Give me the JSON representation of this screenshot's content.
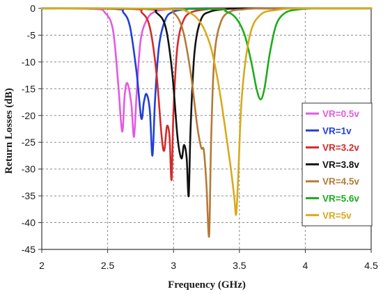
{
  "chart_data": {
    "type": "line",
    "xlabel": "Frequency (GHz)",
    "ylabel": "Return Losses (dB)",
    "xlim": [
      2,
      4.5
    ],
    "ylim": [
      -45,
      0
    ],
    "xticks": [
      "2",
      "2.5",
      "3",
      "3.5",
      "4",
      "4.5"
    ],
    "yticks": [
      "0",
      "-5",
      "-10",
      "-15",
      "-20",
      "-25",
      "-30",
      "-35",
      "-40",
      "-45"
    ],
    "grid": true,
    "legend_position": "right",
    "series": [
      {
        "name": "VR=0.5v",
        "color": "#e35ae3",
        "x": [
          2,
          2.4,
          2.48,
          2.54,
          2.58,
          2.61,
          2.63,
          2.65,
          2.68,
          2.7,
          2.72,
          2.75,
          2.8,
          2.86,
          2.95,
          3.1,
          4.5
        ],
        "y": [
          0,
          -0.1,
          -0.8,
          -4.0,
          -14.0,
          -23.0,
          -16.0,
          -14.0,
          -18.0,
          -24.0,
          -16.0,
          -6.0,
          -2.0,
          -0.6,
          -0.2,
          0,
          0
        ]
      },
      {
        "name": "VR=1v",
        "color": "#1f3fd8",
        "x": [
          2,
          2.55,
          2.62,
          2.67,
          2.72,
          2.755,
          2.775,
          2.795,
          2.82,
          2.84,
          2.86,
          2.89,
          2.94,
          3.0,
          3.1,
          3.25,
          4.5
        ],
        "y": [
          0,
          -0.1,
          -0.8,
          -3.5,
          -12.0,
          -20.5,
          -17.5,
          -16.0,
          -19.0,
          -27.5,
          -17.0,
          -7.0,
          -2.0,
          -0.6,
          -0.2,
          0,
          0
        ]
      },
      {
        "name": "VR=3.2v",
        "color": "#d42a2a",
        "x": [
          2,
          2.68,
          2.76,
          2.82,
          2.87,
          2.91,
          2.93,
          2.95,
          2.97,
          2.985,
          3.0,
          3.03,
          3.08,
          3.15,
          3.25,
          3.4,
          4.5
        ],
        "y": [
          0,
          -0.1,
          -0.8,
          -3.5,
          -12.0,
          -24.0,
          -26.5,
          -22.0,
          -24.0,
          -32.0,
          -19.0,
          -7.0,
          -2.0,
          -0.6,
          -0.2,
          0,
          0
        ]
      },
      {
        "name": "VR=3.8v",
        "color": "#111111",
        "x": [
          2,
          2.78,
          2.87,
          2.94,
          2.99,
          3.03,
          3.06,
          3.08,
          3.1,
          3.115,
          3.13,
          3.16,
          3.21,
          3.28,
          3.38,
          3.55,
          4.5
        ],
        "y": [
          0,
          -0.1,
          -0.8,
          -3.5,
          -12.0,
          -24.0,
          -28.0,
          -25.5,
          -28.0,
          -35.0,
          -22.0,
          -8.0,
          -2.0,
          -0.6,
          -0.2,
          0,
          0
        ]
      },
      {
        "name": "VR=4.5v",
        "color": "#b57a36",
        "x": [
          2,
          2.9,
          3.0,
          3.07,
          3.13,
          3.18,
          3.21,
          3.23,
          3.25,
          3.27,
          3.285,
          3.31,
          3.36,
          3.43,
          3.53,
          3.7,
          4.5
        ],
        "y": [
          0,
          -0.1,
          -0.8,
          -4.0,
          -12.0,
          -22.0,
          -26.0,
          -26.5,
          -33.0,
          -42.5,
          -25.0,
          -9.0,
          -2.5,
          -0.6,
          -0.2,
          0,
          0
        ]
      },
      {
        "name": "VR=5.6v",
        "color": "#1cac1c",
        "x": [
          2,
          3.25,
          3.4,
          3.48,
          3.54,
          3.59,
          3.63,
          3.66,
          3.69,
          3.73,
          3.78,
          3.85,
          3.95,
          4.1,
          4.5
        ],
        "y": [
          0,
          -0.1,
          -0.6,
          -2.0,
          -5.0,
          -10.0,
          -15.0,
          -17.0,
          -15.0,
          -8.5,
          -3.0,
          -0.8,
          -0.2,
          0,
          0
        ]
      },
      {
        "name": "VR=5v",
        "color": "#d7aa1c",
        "x": [
          2,
          2.95,
          3.1,
          3.2,
          3.28,
          3.34,
          3.39,
          3.43,
          3.46,
          3.475,
          3.49,
          3.52,
          3.58,
          3.66,
          3.78,
          3.95,
          4.5
        ],
        "y": [
          0,
          -0.1,
          -0.6,
          -2.5,
          -7.0,
          -14.0,
          -22.0,
          -29.0,
          -35.0,
          -38.5,
          -32.0,
          -16.0,
          -5.0,
          -1.2,
          -0.3,
          0,
          0
        ]
      }
    ]
  }
}
